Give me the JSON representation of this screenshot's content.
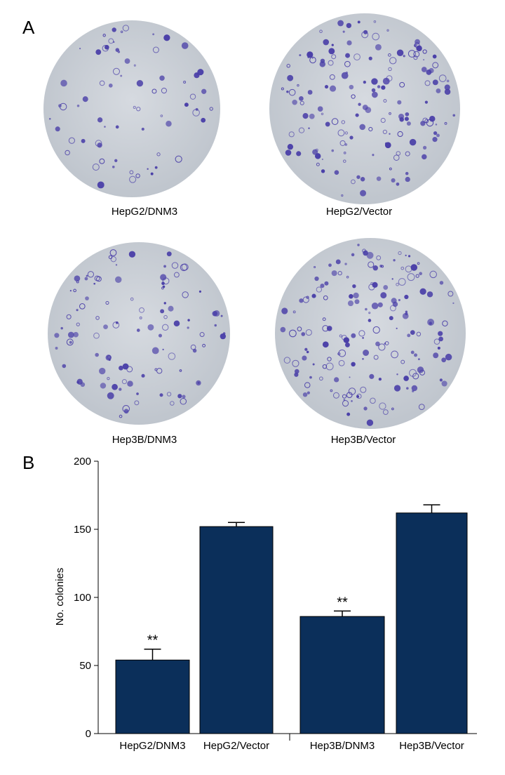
{
  "panel_a": {
    "label": "A",
    "captions": [
      "HepG2/DNM3",
      "HepG2/Vector",
      "Hep3B/DNM3",
      "Hep3B/Vector"
    ]
  },
  "panel_b_label": "B",
  "chart_data": {
    "type": "bar",
    "y_label": "No. colonies",
    "categories": [
      "HepG2/DNM3",
      "HepG2/Vector",
      "Hep3B/DNM3",
      "Hep3B/Vector"
    ],
    "values": [
      54,
      152,
      86,
      162
    ],
    "errors": [
      8,
      3,
      4,
      6
    ],
    "significance": [
      "**",
      null,
      "**",
      null
    ],
    "color": "#0b2f5a",
    "ylim": [
      0,
      200
    ],
    "yticks": [
      0,
      50,
      100,
      150,
      200
    ]
  }
}
